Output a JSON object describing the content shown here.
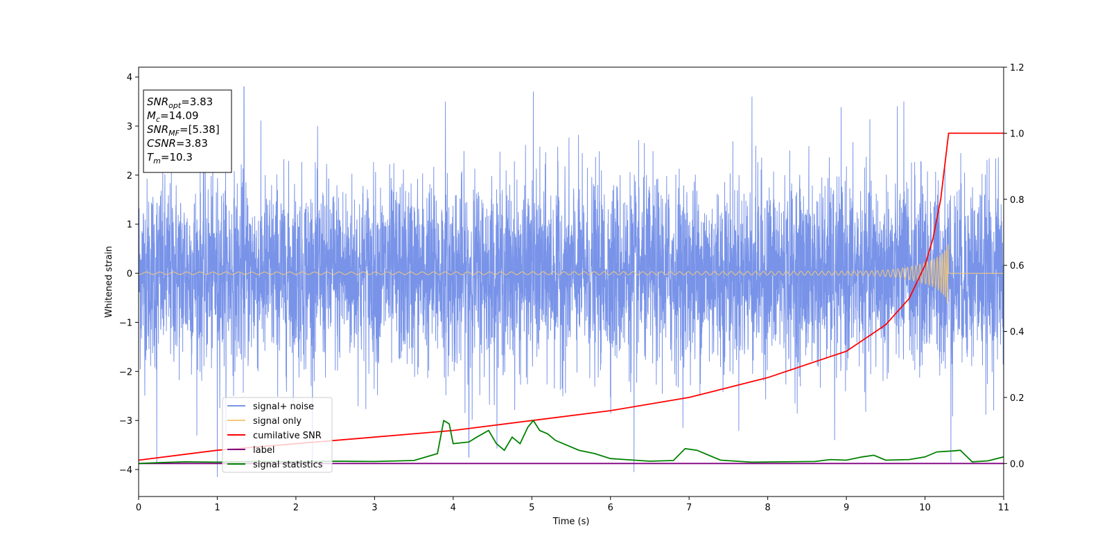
{
  "chart_data": {
    "type": "line",
    "xlabel": "Time (s)",
    "ylabel": "Whitened strain",
    "xlim": [
      0,
      11
    ],
    "ylim": [
      -4.55,
      4.2
    ],
    "y2lim": [
      -0.1,
      1.2
    ],
    "grid": false,
    "legend_position": "lower-left",
    "x_ticks": [
      "0",
      "1",
      "2",
      "3",
      "4",
      "5",
      "6",
      "7",
      "8",
      "9",
      "10",
      "11"
    ],
    "y_ticks": [
      "4",
      "3",
      "2",
      "1",
      "0",
      "−1",
      "−2",
      "−3",
      "−4"
    ],
    "y2_ticks": [
      "1.2",
      "1.0",
      "0.8",
      "0.6",
      "0.4",
      "0.2",
      "0.0"
    ],
    "info_box": {
      "lines": [
        {
          "name": "SNR",
          "sub": "opt",
          "value": "=3.83"
        },
        {
          "name": "M",
          "sub": "c",
          "value": "=14.09"
        },
        {
          "name": "SNR",
          "sub": "MF",
          "value": "=[5.38]"
        },
        {
          "name": "CSNR",
          "sub": "",
          "value": "=3.83"
        },
        {
          "name": "T",
          "sub": "m",
          "value": "=10.3"
        }
      ]
    },
    "series": [
      {
        "name": "signal+ noise",
        "color": "#7893e8",
        "axis": "left",
        "style": "noise",
        "sigma": 0.95,
        "spikes": [
          [
            1.34,
            3.8
          ],
          [
            3.9,
            3.5
          ],
          [
            5.02,
            3.7
          ],
          [
            7.8,
            3.6
          ],
          [
            9.73,
            3.5
          ],
          [
            10.33,
            3.55
          ],
          [
            6.3,
            -4.05
          ],
          [
            1.0,
            -4.15
          ],
          [
            4.2,
            -3.75
          ],
          [
            8.85,
            -3.4
          ],
          [
            10.33,
            -3.85
          ],
          [
            0.23,
            -3.85
          ]
        ]
      },
      {
        "name": "signal only",
        "color": "#f5c97a",
        "axis": "left",
        "style": "chirp",
        "t_merge": 10.3
      },
      {
        "name": "cumilative SNR",
        "color": "#ff0000",
        "axis": "right",
        "x": [
          0,
          1,
          2,
          3,
          4,
          5,
          6,
          7,
          8,
          8.5,
          9,
          9.5,
          9.8,
          10.0,
          10.1,
          10.2,
          10.25,
          10.3,
          10.31,
          11
        ],
        "values": [
          0.01,
          0.04,
          0.06,
          0.08,
          0.1,
          0.13,
          0.16,
          0.2,
          0.26,
          0.3,
          0.34,
          0.42,
          0.5,
          0.6,
          0.68,
          0.8,
          0.9,
          1.0,
          1.0,
          1.0
        ]
      },
      {
        "name": "label",
        "color": "#800080",
        "axis": "right",
        "x": [
          0,
          11
        ],
        "values": [
          0,
          0
        ]
      },
      {
        "name": "signal statistics",
        "color": "#008000",
        "axis": "right",
        "x": [
          0,
          0.3,
          0.6,
          1.0,
          1.5,
          2.0,
          2.5,
          3.0,
          3.5,
          3.8,
          3.88,
          3.95,
          4.0,
          4.2,
          4.3,
          4.45,
          4.55,
          4.65,
          4.75,
          4.85,
          4.95,
          5.02,
          5.1,
          5.2,
          5.3,
          5.4,
          5.6,
          5.8,
          6.0,
          6.3,
          6.5,
          6.8,
          6.95,
          7.1,
          7.4,
          7.8,
          8.2,
          8.6,
          8.8,
          9.0,
          9.2,
          9.35,
          9.5,
          9.8,
          10.0,
          10.15,
          10.35,
          10.45,
          10.6,
          10.8,
          11.0
        ],
        "values": [
          0.0,
          0.003,
          0.005,
          0.004,
          0.006,
          0.005,
          0.007,
          0.006,
          0.009,
          0.03,
          0.13,
          0.12,
          0.06,
          0.065,
          0.08,
          0.1,
          0.06,
          0.04,
          0.08,
          0.06,
          0.11,
          0.13,
          0.1,
          0.09,
          0.07,
          0.06,
          0.04,
          0.03,
          0.015,
          0.01,
          0.007,
          0.009,
          0.045,
          0.04,
          0.01,
          0.004,
          0.005,
          0.006,
          0.012,
          0.01,
          0.02,
          0.025,
          0.01,
          0.012,
          0.02,
          0.035,
          0.038,
          0.04,
          0.005,
          0.008,
          0.02
        ]
      }
    ]
  }
}
